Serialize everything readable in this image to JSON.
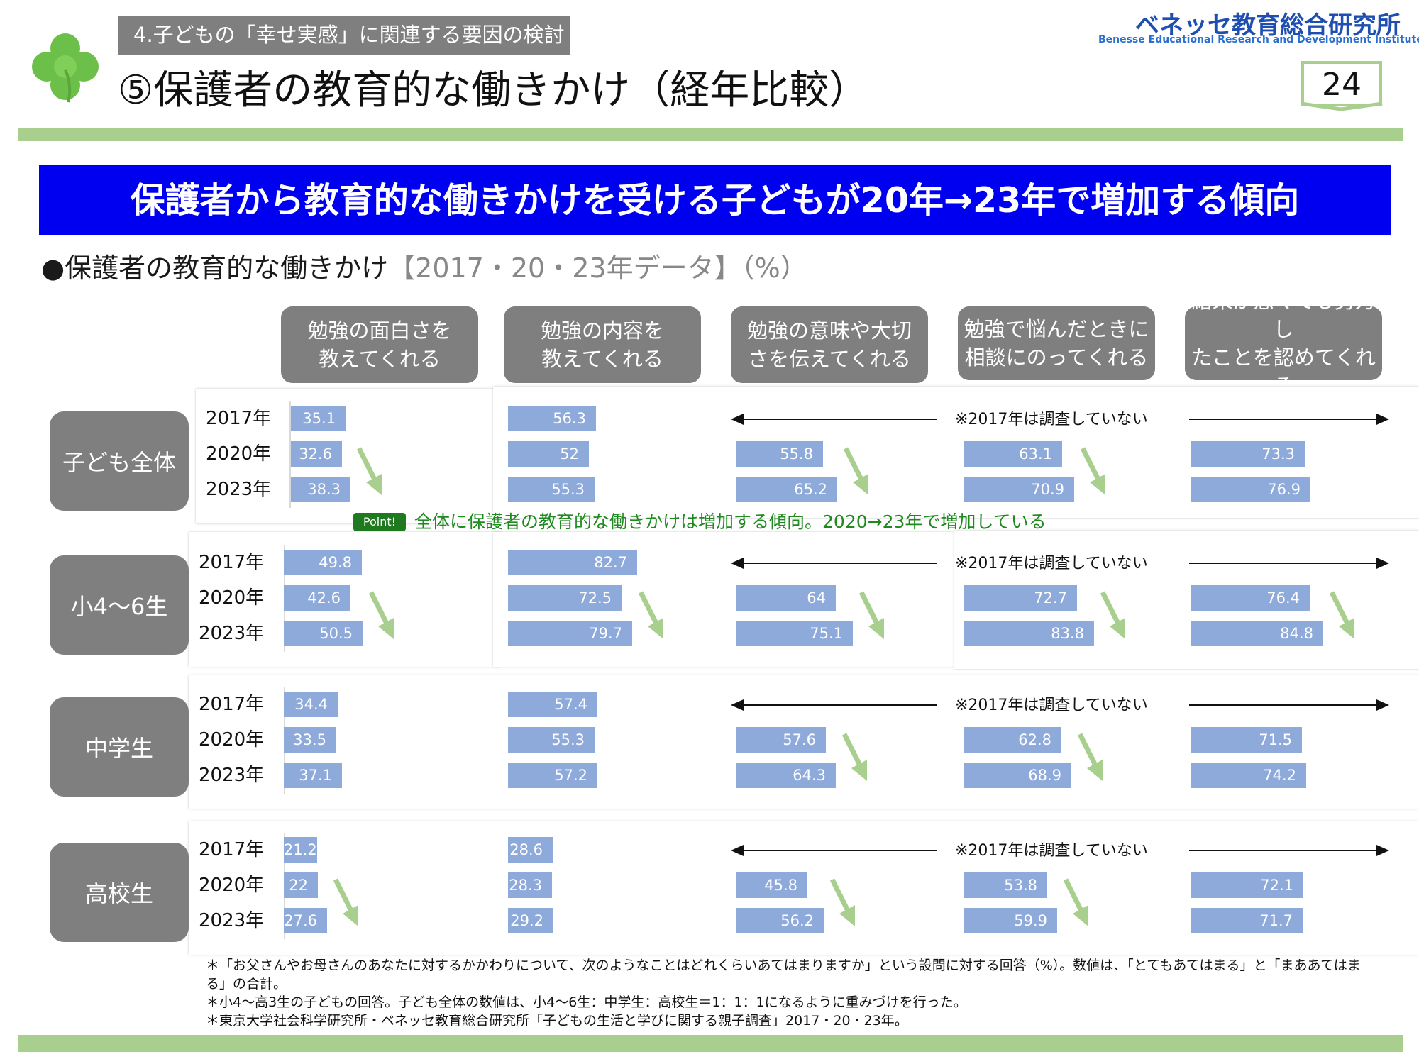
{
  "header": {
    "breadcrumb": "4.子どもの「幸せ実感」に関連する要因の検討",
    "title": "⑤保護者の教育的な働きかけ（経年比較）",
    "brand_jp": "ベネッセ教育総合研究所",
    "brand_en": "Benesse Educational Research and Development Institute",
    "page_number": "24"
  },
  "banner": "保護者から教育的な働きかけを受ける子どもが20年→23年で増加する傾向",
  "subtitle": {
    "main": "●保護者の教育的な働きかけ",
    "sub": "【2017・20・23年データ】（%）"
  },
  "chart_data": {
    "type": "bar",
    "orientation": "horizontal",
    "title": "保護者の教育的な働きかけ【2017・20・23年データ】（%）",
    "unit": "%",
    "xlim": [
      0,
      100
    ],
    "years": [
      "2017年",
      "2020年",
      "2023年"
    ],
    "items": [
      {
        "label": "勉強の面白さを\n教えてくれる",
        "lines": [
          "勉強の面白さを",
          "教えてくれる"
        ]
      },
      {
        "label": "勉強の内容を\n教えてくれる",
        "lines": [
          "勉強の内容を",
          "教えてくれる"
        ]
      },
      {
        "label": "勉強の意味や大切\nさを伝えてくれる",
        "lines": [
          "勉強の意味や大切",
          "さを伝えてくれる"
        ]
      },
      {
        "label": "勉強で悩んだときに\n相談にのってくれる",
        "lines": [
          "勉強で悩んだときに",
          "相談にのってくれる"
        ]
      },
      {
        "label": "結果が悪くても努力し\nたことを認めてくれる",
        "lines": [
          "結果が悪くても努力し",
          "たことを認めてくれる"
        ]
      }
    ],
    "groups": [
      {
        "name": "子ども全体",
        "values": [
          [
            35.1,
            32.6,
            38.3
          ],
          [
            56.3,
            52.0,
            55.3
          ],
          [
            null,
            55.8,
            65.2
          ],
          [
            null,
            63.1,
            70.9
          ],
          [
            null,
            73.3,
            76.9
          ]
        ],
        "arrows": [
          true,
          false,
          true,
          true,
          false
        ]
      },
      {
        "name": "小4〜6生",
        "values": [
          [
            49.8,
            42.6,
            50.5
          ],
          [
            82.7,
            72.5,
            79.7
          ],
          [
            null,
            64.0,
            75.1
          ],
          [
            null,
            72.7,
            83.8
          ],
          [
            null,
            76.4,
            84.8
          ]
        ],
        "arrows": [
          true,
          true,
          true,
          true,
          true
        ]
      },
      {
        "name": "中学生",
        "values": [
          [
            34.4,
            33.5,
            37.1
          ],
          [
            57.4,
            55.3,
            57.2
          ],
          [
            null,
            57.6,
            64.3
          ],
          [
            null,
            62.8,
            68.9
          ],
          [
            null,
            71.5,
            74.2
          ]
        ],
        "arrows": [
          false,
          false,
          true,
          true,
          false
        ]
      },
      {
        "name": "高校生",
        "values": [
          [
            21.2,
            22.0,
            27.6
          ],
          [
            28.6,
            28.3,
            29.2
          ],
          [
            null,
            45.8,
            56.2
          ],
          [
            null,
            53.8,
            59.9
          ],
          [
            null,
            72.1,
            71.7
          ]
        ],
        "arrows": [
          true,
          false,
          true,
          true,
          false
        ]
      }
    ],
    "not_surveyed_note": "※2017年は調査していない",
    "annotation_label": "Point!",
    "annotation": "全体に保護者の教育的な働きかけは増加する傾向。2020→23年で増加している"
  },
  "footnotes": [
    "＊「お父さんやお母さんのあなたに対するかかわりについて、次のようなことはどれくらいあてはまりますか」という設問に対する回答（%）。数値は、「とてもあてはまる」と「まああてはま",
    "る」の合計。",
    "＊小4〜高3生の子どもの回答。子ども全体の数値は、小4〜6生：中学生：高校生＝1：1：1になるように重みづけを行った。",
    "＊東京大学社会科学研究所・ベネッセ教育総合研究所「子どもの生活と学びに関する親子調査」2017・20・23年。"
  ],
  "colors": {
    "bar": "#8eaadb",
    "arrow": "#a9cf8e",
    "banner": "#0000f0",
    "label_bg": "#7f7f7f",
    "brand": "#1e4fb0",
    "point": "#1f7a1f"
  }
}
